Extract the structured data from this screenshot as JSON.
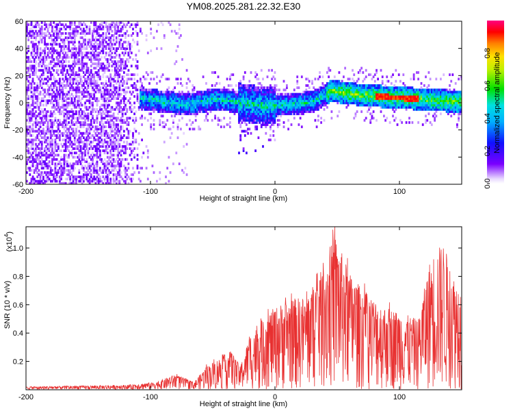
{
  "chart_data": [
    {
      "type": "heatmap",
      "title": "YM08.2025.281.22.32.E30",
      "xlabel": "Height of straight line (km)",
      "ylabel": "Frequency (Hz)",
      "xlim": [
        -200,
        150
      ],
      "ylim": [
        -60,
        60
      ],
      "x_ticks": [
        -200,
        -100,
        0,
        100
      ],
      "y_ticks": [
        -60,
        -40,
        -20,
        0,
        20,
        40,
        60
      ],
      "colorbar": {
        "label": "Normalized spectral amplitude",
        "range": [
          0,
          1
        ],
        "ticks": [
          "0.0",
          "0.2",
          "0.4",
          "0.6",
          "0.8"
        ],
        "colormap": "rainbow (white, violet, blue, cyan, green, yellow, orange, red, magenta)"
      },
      "features": {
        "noise_region_x": [
          -200,
          -105
        ],
        "noise_amplitude": 0.1,
        "signal_band_x": [
          -110,
          150
        ],
        "signal_center_freq": [
          {
            "x": -110,
            "f": 3
          },
          {
            "x": -90,
            "f": 0
          },
          {
            "x": -70,
            "f": -2
          },
          {
            "x": -50,
            "f": 2
          },
          {
            "x": -30,
            "f": 0
          },
          {
            "x": -10,
            "f": -3
          },
          {
            "x": 10,
            "f": -2
          },
          {
            "x": 30,
            "f": 0
          },
          {
            "x": 45,
            "f": 8
          },
          {
            "x": 70,
            "f": 5
          },
          {
            "x": 100,
            "f": 3
          },
          {
            "x": 150,
            "f": 0
          }
        ],
        "peak_amplitude_x": [
          80,
          115
        ],
        "peak_amplitude": 0.95
      }
    },
    {
      "type": "line",
      "xlabel": "Height of straight line (km)",
      "ylabel": "SNR (10 * v/v)",
      "y_scale_label": "(x10",
      "y_scale_exponent": "4",
      "xlim": [
        -200,
        150
      ],
      "ylim": [
        0,
        1.15
      ],
      "x_ticks": [
        -200,
        -100,
        0,
        100
      ],
      "y_ticks": [
        0.2,
        0.4,
        0.6,
        0.8,
        1.0
      ],
      "color": "#e83030",
      "envelope": [
        {
          "x": -200,
          "v": 0.02
        },
        {
          "x": -120,
          "v": 0.03
        },
        {
          "x": -95,
          "v": 0.05
        },
        {
          "x": -80,
          "v": 0.1
        },
        {
          "x": -65,
          "v": 0.05
        },
        {
          "x": -55,
          "v": 0.15
        },
        {
          "x": -45,
          "v": 0.2
        },
        {
          "x": -35,
          "v": 0.25
        },
        {
          "x": -28,
          "v": 0.15
        },
        {
          "x": -20,
          "v": 0.35
        },
        {
          "x": -5,
          "v": 0.5
        },
        {
          "x": 10,
          "v": 0.58
        },
        {
          "x": 25,
          "v": 0.6
        },
        {
          "x": 40,
          "v": 0.8
        },
        {
          "x": 48,
          "v": 1.0
        },
        {
          "x": 60,
          "v": 0.75
        },
        {
          "x": 70,
          "v": 0.65
        },
        {
          "x": 85,
          "v": 0.55
        },
        {
          "x": 100,
          "v": 0.5
        },
        {
          "x": 115,
          "v": 0.45
        },
        {
          "x": 125,
          "v": 0.85
        },
        {
          "x": 135,
          "v": 0.95
        },
        {
          "x": 145,
          "v": 0.7
        },
        {
          "x": 150,
          "v": 0.65
        }
      ]
    }
  ]
}
